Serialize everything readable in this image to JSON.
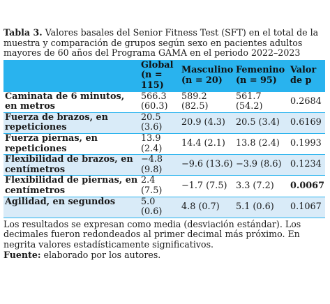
{
  "caption": {
    "label": "Tabla 3.",
    "text": "Valores basales del Senior Fitness Test (SFT) en el total de la muestra y comparación de grupos según sexo en pacientes adultos mayores de 60 años del Programa GAMA en el periodo 2022–2023"
  },
  "table": {
    "headers": [
      "",
      "Global (n = 115)",
      "Masculino (n = 20)",
      "Femenino (n = 95)",
      "Valor de p"
    ],
    "rows": [
      {
        "label": "Caminata de 6 minutos, en metros",
        "global": "566.3 (60.3)",
        "masculino": "589.2 (82.5)",
        "femenino": "561.7 (54.2)",
        "p": "0.2684",
        "p_bold": false
      },
      {
        "label": "Fuerza de brazos, en repeticiones",
        "global": "20.5 (3.6)",
        "masculino": "20.9 (4.3)",
        "femenino": "20.5 (3.4)",
        "p": "0.6169",
        "p_bold": false
      },
      {
        "label": "Fuerza piernas, en repeticiones",
        "global": "13.9 (2.4)",
        "masculino": "14.4 (2.1)",
        "femenino": "13.8 (2.4)",
        "p": "0.1993",
        "p_bold": false
      },
      {
        "label": "Flexibilidad de brazos, en centímetros",
        "global": "−4.8 (9.8)",
        "masculino": "−9.6 (13.6)",
        "femenino": "−3.9 (8.6)",
        "p": "0.1234",
        "p_bold": false
      },
      {
        "label": "Flexibilidad de piernas, en centímetros",
        "global": "2.4 (7.5)",
        "masculino": "−1.7 (7.5)",
        "femenino": "3.3 (7.2)",
        "p": "0.0067",
        "p_bold": true
      },
      {
        "label": "Agilidad, en segundos",
        "global": "5.0 (0.6)",
        "masculino": "4.8 (0.7)",
        "femenino": "5.1 (0.6)",
        "p": "0.1067",
        "p_bold": false
      }
    ]
  },
  "notes": {
    "text": "Los resultados se expresan como media (desviación estándar). Los decimales fueron redondeados al primer decimal más próximo. En negrita valores estadísticamente significativos.",
    "source_label": "Fuente:",
    "source_text": "elaborado por los autores."
  },
  "colors": {
    "header_bg": "#29b3ee",
    "stripe_bg": "#d9ebf8"
  }
}
